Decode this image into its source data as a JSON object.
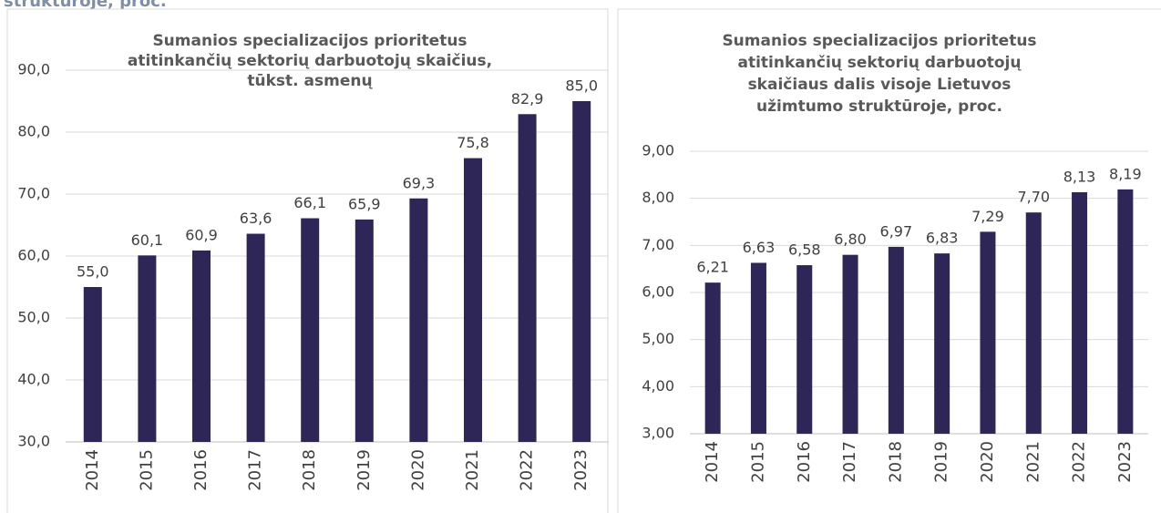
{
  "heading": "struktūroje, proc.",
  "chart_data": [
    {
      "type": "bar",
      "title": [
        "Sumanios specializacijos prioritetus",
        "atitinkančių sektorių darbuotojų skaičius,",
        "tūkst. asmenų"
      ],
      "categories": [
        "2014",
        "2015",
        "2016",
        "2017",
        "2018",
        "2019",
        "2020",
        "2021",
        "2022",
        "2023"
      ],
      "values": [
        55.0,
        60.1,
        60.9,
        63.6,
        66.1,
        65.9,
        69.3,
        75.8,
        82.9,
        85.0
      ],
      "value_labels": [
        "55,0",
        "60,1",
        "60,9",
        "63,6",
        "66,1",
        "65,9",
        "69,3",
        "75,8",
        "82,9",
        "85,0"
      ],
      "color": "#2e2657",
      "ylim": [
        30,
        90
      ],
      "yticks": [
        {
          "value": 30,
          "label": "30,0"
        },
        {
          "value": 40,
          "label": "40,0"
        },
        {
          "value": 50,
          "label": "50,0"
        },
        {
          "value": 60,
          "label": "60,0"
        },
        {
          "value": 70,
          "label": "70,0"
        },
        {
          "value": 80,
          "label": "80,0"
        },
        {
          "value": 90,
          "label": "90,0"
        }
      ],
      "grid": true
    },
    {
      "type": "bar",
      "title": [
        "Sumanios specializacijos prioritetus",
        "atitinkančių sektorių darbuotojų",
        "skaičiaus dalis visoje Lietuvos",
        "užimtumo struktūroje, proc."
      ],
      "categories": [
        "2014",
        "2015",
        "2016",
        "2017",
        "2018",
        "2019",
        "2020",
        "2021",
        "2022",
        "2023"
      ],
      "values": [
        6.21,
        6.63,
        6.58,
        6.8,
        6.97,
        6.83,
        7.29,
        7.7,
        8.13,
        8.19
      ],
      "value_labels": [
        "6,21",
        "6,63",
        "6,58",
        "6,80",
        "6,97",
        "6,83",
        "7,29",
        "7,70",
        "8,13",
        "8,19"
      ],
      "color": "#2e2657",
      "ylim": [
        3,
        9
      ],
      "yticks": [
        {
          "value": 3,
          "label": "3,00"
        },
        {
          "value": 4,
          "label": "4,00"
        },
        {
          "value": 5,
          "label": "5,00"
        },
        {
          "value": 6,
          "label": "6,00"
        },
        {
          "value": 7,
          "label": "7,00"
        },
        {
          "value": 8,
          "label": "8,00"
        },
        {
          "value": 9,
          "label": "9,00"
        }
      ],
      "grid": true
    }
  ]
}
